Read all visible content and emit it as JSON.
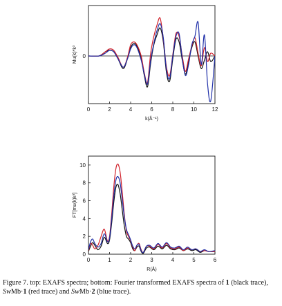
{
  "chart_data": [
    {
      "type": "line",
      "panel": "top",
      "xlabel": "k(Å⁻¹)",
      "ylabel": "Mu(k)*k³",
      "xlim": [
        0,
        12
      ],
      "ylim": [
        -3.4,
        3.6
      ],
      "x_ticks": [
        "0",
        "2",
        "4",
        "6",
        "8",
        "10",
        "12"
      ],
      "y_ticks": [
        "0"
      ],
      "zero_line": true,
      "series": [
        {
          "color": "#111111",
          "x": [
            0,
            1,
            1.6,
            2.0,
            2.4,
            2.8,
            3.3,
            3.7,
            4.0,
            4.3,
            4.6,
            5.0,
            5.3,
            5.6,
            5.9,
            6.2,
            6.5,
            6.8,
            7.1,
            7.4,
            7.7,
            8.0,
            8.3,
            8.6,
            8.9,
            9.2,
            9.5,
            9.8,
            10.1,
            10.4,
            10.7,
            11.0,
            11.3,
            11.6,
            12.0
          ],
          "y": [
            0,
            0,
            0.3,
            0.4,
            0.3,
            -0.2,
            -0.9,
            -0.2,
            0.6,
            0.9,
            0.7,
            -0.2,
            -1.4,
            -2.2,
            -0.5,
            0.8,
            1.5,
            2.0,
            1.0,
            -1.2,
            -1.8,
            -0.2,
            1.2,
            1.0,
            -0.3,
            -1.3,
            -0.4,
            0.6,
            1.0,
            0.0,
            -0.9,
            -0.3,
            0.3,
            -0.4,
            0.0
          ]
        },
        {
          "color": "#d0202a",
          "x": [
            0,
            1,
            1.6,
            2.0,
            2.4,
            2.8,
            3.3,
            3.7,
            4.0,
            4.3,
            4.6,
            5.0,
            5.3,
            5.6,
            5.9,
            6.2,
            6.5,
            6.8,
            7.1,
            7.4,
            7.7,
            8.0,
            8.3,
            8.6,
            8.9,
            9.2,
            9.5,
            9.8,
            10.1,
            10.4,
            10.7,
            11.0,
            11.3,
            11.6,
            12.0
          ],
          "y": [
            0,
            0,
            0.3,
            0.5,
            0.4,
            -0.1,
            -0.8,
            -0.1,
            0.8,
            1.0,
            0.8,
            0.0,
            -1.2,
            -1.9,
            0.2,
            1.4,
            2.2,
            2.7,
            1.2,
            -0.8,
            -1.4,
            0.1,
            1.6,
            1.4,
            0.0,
            -1.1,
            -0.2,
            0.7,
            1.3,
            0.2,
            -0.7,
            0.6,
            -0.4,
            0.2,
            0.0
          ]
        },
        {
          "color": "#1f2fa8",
          "x": [
            0,
            1,
            1.6,
            2.0,
            2.4,
            2.8,
            3.3,
            3.7,
            4.0,
            4.3,
            4.6,
            5.0,
            5.3,
            5.6,
            5.9,
            6.2,
            6.5,
            6.8,
            7.1,
            7.4,
            7.7,
            8.0,
            8.3,
            8.6,
            8.9,
            9.2,
            9.5,
            9.8,
            10.1,
            10.4,
            10.7,
            11.0,
            11.3,
            11.6,
            12.0
          ],
          "y": [
            0,
            0,
            0.2,
            0.4,
            0.3,
            -0.2,
            -0.8,
            -0.2,
            0.5,
            0.8,
            0.6,
            -0.3,
            -1.3,
            -2.0,
            -0.3,
            0.9,
            1.8,
            2.3,
            1.3,
            -1.0,
            -1.6,
            0.0,
            1.4,
            1.6,
            -0.2,
            -1.4,
            -0.6,
            0.8,
            1.4,
            2.4,
            -0.6,
            1.5,
            -2.0,
            -3.2,
            0.0
          ]
        }
      ]
    },
    {
      "type": "line",
      "panel": "bottom",
      "xlabel": "R(Å)",
      "ylabel": "FT[mu(k)k³]",
      "xlim": [
        0,
        6
      ],
      "ylim": [
        0,
        11
      ],
      "x_ticks": [
        "0",
        "1",
        "2",
        "3",
        "4",
        "5",
        "6"
      ],
      "y_ticks": [
        "0",
        "2",
        "4",
        "6",
        "8",
        "10"
      ],
      "series": [
        {
          "color": "#111111",
          "x": [
            0,
            0.1,
            0.2,
            0.3,
            0.45,
            0.6,
            0.75,
            0.9,
            1.0,
            1.1,
            1.2,
            1.3,
            1.4,
            1.5,
            1.6,
            1.7,
            1.8,
            1.9,
            2.0,
            2.1,
            2.2,
            2.3,
            2.4,
            2.5,
            2.6,
            2.75,
            2.9,
            3.1,
            3.3,
            3.5,
            3.7,
            3.9,
            4.1,
            4.3,
            4.5,
            4.7,
            4.9,
            5.1,
            5.3,
            5.5,
            5.7,
            6.0
          ],
          "y": [
            0.3,
            0.9,
            1.3,
            1.0,
            0.5,
            0.9,
            1.9,
            1.2,
            1.6,
            3.5,
            5.8,
            7.5,
            7.8,
            6.8,
            5.0,
            3.2,
            2.0,
            1.7,
            1.3,
            0.6,
            0.4,
            0.8,
            0.9,
            0.3,
            0.1,
            0.7,
            0.8,
            0.5,
            0.9,
            0.6,
            1.0,
            0.6,
            0.5,
            0.7,
            0.4,
            0.6,
            0.4,
            0.5,
            0.2,
            0.4,
            0.3,
            0.3
          ]
        },
        {
          "color": "#d0202a",
          "x": [
            0,
            0.1,
            0.2,
            0.3,
            0.45,
            0.6,
            0.75,
            0.9,
            1.0,
            1.1,
            1.2,
            1.3,
            1.4,
            1.5,
            1.6,
            1.7,
            1.8,
            1.9,
            2.0,
            2.1,
            2.2,
            2.3,
            2.4,
            2.5,
            2.6,
            2.75,
            2.9,
            3.1,
            3.3,
            3.5,
            3.7,
            3.9,
            4.1,
            4.3,
            4.5,
            4.7,
            4.9,
            5.1,
            5.3,
            5.5,
            5.7,
            6.0
          ],
          "y": [
            0.4,
            1.2,
            1.0,
            0.6,
            1.0,
            2.0,
            2.8,
            1.5,
            2.0,
            4.5,
            7.5,
            9.6,
            10.1,
            9.2,
            7.0,
            4.5,
            2.6,
            2.0,
            1.5,
            0.8,
            0.4,
            1.0,
            1.2,
            0.5,
            0.2,
            0.9,
            0.9,
            0.6,
            1.1,
            0.7,
            1.2,
            0.7,
            0.6,
            0.8,
            0.4,
            0.7,
            0.5,
            0.6,
            0.3,
            0.4,
            0.3,
            0.3
          ]
        },
        {
          "color": "#1f2fa8",
          "x": [
            0,
            0.1,
            0.2,
            0.3,
            0.45,
            0.6,
            0.75,
            0.9,
            1.0,
            1.1,
            1.2,
            1.3,
            1.4,
            1.5,
            1.6,
            1.7,
            1.8,
            1.9,
            2.0,
            2.1,
            2.2,
            2.3,
            2.4,
            2.5,
            2.6,
            2.75,
            2.9,
            3.1,
            3.3,
            3.5,
            3.7,
            3.9,
            4.1,
            4.3,
            4.5,
            4.7,
            4.9,
            5.1,
            5.3,
            5.5,
            5.7,
            6.0
          ],
          "y": [
            0.5,
            1.4,
            1.7,
            1.2,
            0.8,
            1.2,
            2.3,
            1.4,
            1.8,
            4.0,
            6.5,
            8.3,
            8.7,
            8.0,
            6.2,
            4.2,
            2.8,
            2.2,
            1.6,
            0.9,
            0.6,
            1.0,
            1.1,
            0.4,
            0.2,
            0.9,
            1.0,
            0.7,
            1.2,
            0.8,
            1.3,
            0.8,
            0.7,
            0.9,
            0.5,
            0.8,
            0.5,
            0.6,
            0.3,
            0.5,
            0.3,
            0.4
          ]
        }
      ]
    }
  ],
  "caption": {
    "prefix": "Figure 7. top: EXAFS spectra; bottom: Fourier transformed EXAFS spectra of ",
    "c1": "1",
    "mid1": " (black trace), ",
    "sw1": "Sw",
    "mb1": "Mb·",
    "c2": "1",
    "mid2": " (red trace) and ",
    "sw2": "Sw",
    "mb2": "Mb·",
    "c3": "2",
    "suffix": " (blue trace)."
  }
}
